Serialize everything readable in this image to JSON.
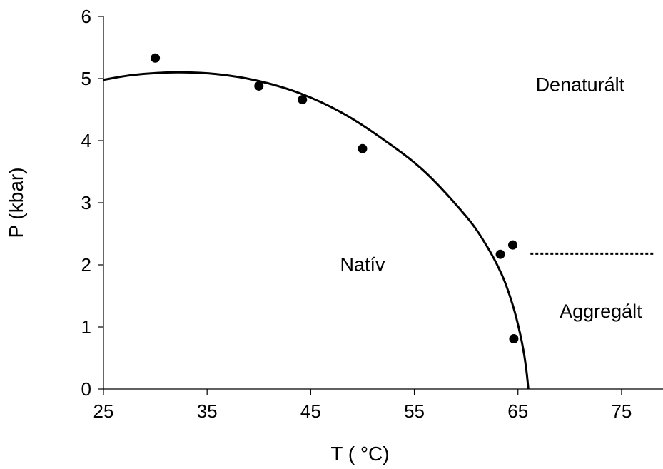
{
  "chart_data": {
    "type": "scatter",
    "xlabel": "T ( °C)",
    "ylabel": "P (kbar)",
    "xlim": [
      25,
      79
    ],
    "ylim": [
      0,
      6
    ],
    "xticks": [
      25,
      35,
      45,
      55,
      65,
      75
    ],
    "yticks": [
      0,
      1,
      2,
      3,
      4,
      5,
      6
    ],
    "grid": false,
    "points": [
      {
        "x": 30.0,
        "y": 5.33
      },
      {
        "x": 40.0,
        "y": 4.88
      },
      {
        "x": 44.2,
        "y": 4.66
      },
      {
        "x": 50.0,
        "y": 3.87
      },
      {
        "x": 63.3,
        "y": 2.17
      },
      {
        "x": 64.5,
        "y": 2.32
      },
      {
        "x": 64.6,
        "y": 0.81
      }
    ],
    "fit_curve": {
      "x": [
        25,
        28,
        32,
        36,
        40,
        44,
        48,
        52,
        56,
        60,
        62,
        63.5,
        64.5,
        65.2,
        65.6,
        65.85,
        66.0
      ],
      "y": [
        4.98,
        5.06,
        5.1,
        5.07,
        4.96,
        4.76,
        4.45,
        4.02,
        3.5,
        2.78,
        2.3,
        1.82,
        1.35,
        0.9,
        0.55,
        0.25,
        0.0
      ]
    },
    "dotted_boundary": {
      "x": [
        66.0,
        79.0
      ],
      "y": [
        2.18,
        2.18
      ]
    },
    "region_labels": [
      {
        "text": "Denaturált",
        "x": 71.0,
        "y": 4.8
      },
      {
        "text": "Natív",
        "x": 50.0,
        "y": 1.9
      },
      {
        "text": "Aggregált",
        "x": 73.0,
        "y": 1.15
      }
    ]
  }
}
